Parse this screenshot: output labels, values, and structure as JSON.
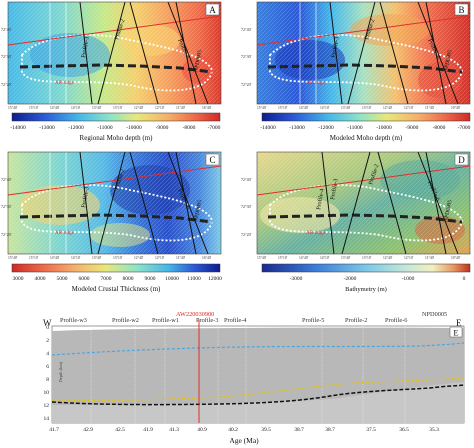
{
  "panels": [
    {
      "letter": "A",
      "colorbar": {
        "ticks": [
          "-14000",
          "-13000",
          "-12000",
          "-11000",
          "-10000",
          "-9000",
          "-8000",
          "-7000"
        ],
        "label": "Regional Moho depth (m)"
      },
      "lon_ticks": [
        "15°40'",
        "15°10'",
        "14°40'",
        "14°10'",
        "13°40'",
        "13°10'",
        "12°40'",
        "12°10'",
        "11°40'",
        "16°40'"
      ],
      "lat_ticks": [
        "72°40'",
        "72°30'",
        "72°20'"
      ],
      "profiles": [
        "Profile-3",
        "Profile-2",
        "Profile-6",
        "NPD0005"
      ],
      "ridge_label": "AR-ridge",
      "colors": [
        "#0d1d8c",
        "#2a57d6",
        "#46b7e8",
        "#8de3c8",
        "#e8e87a",
        "#f5b06a",
        "#ee6a4a",
        "#cf2a26"
      ]
    },
    {
      "letter": "B",
      "colorbar": {
        "ticks": [
          "-14000",
          "-13000",
          "-12000",
          "-11000",
          "-10000",
          "-9000",
          "-8000",
          "-7000"
        ],
        "label": "Modeled Moho depth (m)"
      },
      "lon_ticks": [
        "15°40'",
        "15°10'",
        "14°40'",
        "14°10'",
        "13°40'",
        "13°10'",
        "12°40'",
        "12°10'",
        "11°40'",
        "10°40'"
      ],
      "lat_ticks": [
        "72°40'",
        "72°30'",
        "72°20'"
      ],
      "profiles": [
        "Profile-3",
        "Profile-2",
        "Profile-6",
        "NPD0005"
      ],
      "ridge_label": "AR-ridge",
      "colors": [
        "#0d1d8c",
        "#2a57d6",
        "#46b7e8",
        "#8de3c8",
        "#e8e87a",
        "#f5b06a",
        "#ee6a4a",
        "#cf2a26"
      ]
    },
    {
      "letter": "C",
      "colorbar": {
        "ticks": [
          "3000",
          "4000",
          "5000",
          "6000",
          "7000",
          "8000",
          "9000",
          "10000",
          "11000",
          "12000"
        ],
        "label": "Modeled Crustal Thickness (m)"
      },
      "lon_ticks": [
        "15°40'",
        "15°10'",
        "14°40'",
        "14°10'",
        "13°40'",
        "13°10'",
        "12°40'",
        "12°10'",
        "11°40'",
        "16°40'"
      ],
      "lat_ticks": [
        "72°40'",
        "72°30'",
        "72°20'"
      ],
      "profiles": [
        "Profile-3",
        "Profile-2",
        "Profile-6",
        "NPD0005"
      ],
      "ridge_label": "AR-ridge",
      "colors": [
        "#cf2a26",
        "#ee6a4a",
        "#f5b06a",
        "#e8e87a",
        "#8de3c8",
        "#46b7e8",
        "#2a57d6",
        "#0d1d8c"
      ]
    },
    {
      "letter": "D",
      "colorbar": {
        "ticks": [
          "-3000",
          "-2000",
          "-1000",
          "0"
        ],
        "label": "Bathymetry (m)"
      },
      "lon_ticks": [
        "15°40'",
        "15°10'",
        "14°40'",
        "14°10'",
        "13°40'",
        "13°10'",
        "12°40'",
        "12°10'",
        "11°40'",
        "10°40'"
      ],
      "lat_ticks": [
        "72°40'",
        "72°30'",
        "72°20'"
      ],
      "profiles": [
        "Profile-4",
        "Profile-3",
        "Profile-2",
        "Profile-6",
        "NPD0005"
      ],
      "ridge_label": "AR-ridge",
      "colors": [
        "#1a2a8c",
        "#3a7ad8",
        "#7cc8e8",
        "#c8e8d8",
        "#f0f0c0",
        "#e89860",
        "#c03020"
      ]
    }
  ],
  "section": {
    "letter": "E",
    "west": "W",
    "east": "E",
    "profile_labels": [
      "Profile-w3",
      "Profile-w2",
      "Profile-w1",
      "AW220030900",
      "Profile-3",
      "Profile-4",
      "Profile-5",
      "Profile-2",
      "Profile-6",
      "NPD0005"
    ],
    "highlight_label": "AW220030900",
    "y_label": "Depth (km)",
    "y_ticks": [
      "0",
      "2",
      "4",
      "6",
      "8",
      "10",
      "12",
      "14"
    ],
    "x_label": "Age (Ma)",
    "x_ticks": [
      "41.7",
      "42.9",
      "42.5",
      "41.9",
      "41.3",
      "40.9",
      "40.2",
      "39.5",
      "38.7",
      "38.7",
      "37.5",
      "36.5",
      "35.3"
    ],
    "colors": {
      "fill": "#b8b8b8",
      "seafloor": "#49a6df",
      "moho_model": "#111111",
      "moho_regional": "#e3c21a",
      "highlight": "#e0201c"
    }
  }
}
